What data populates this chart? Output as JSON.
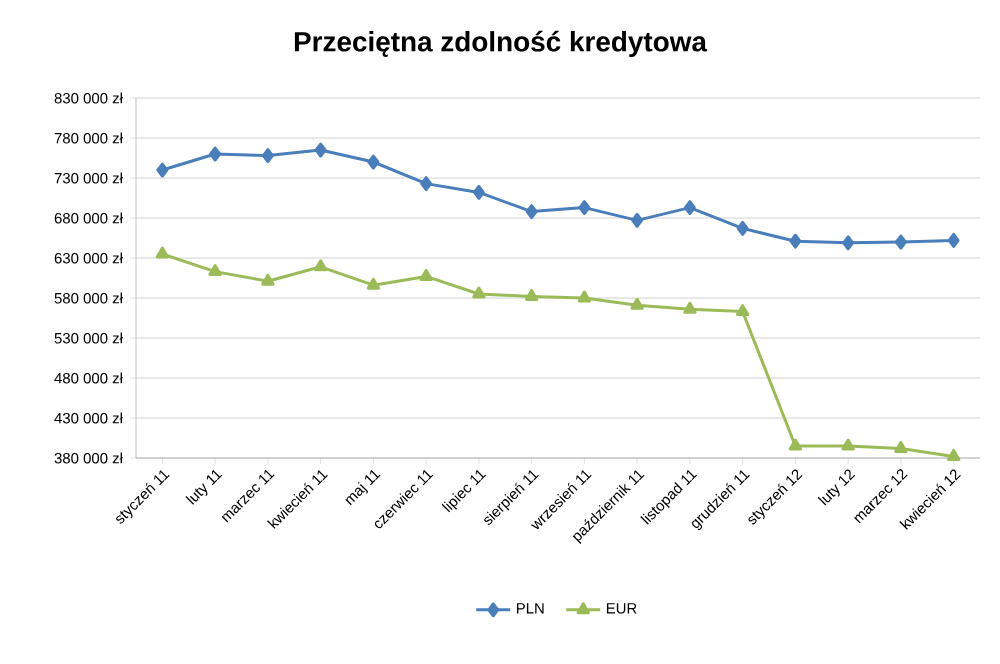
{
  "chart_data": {
    "type": "line",
    "title": "Przeciętna zdolność kredytowa",
    "categories": [
      "styczeń 11",
      "luty 11",
      "marzec 11",
      "kwiecień 11",
      "maj 11",
      "czerwiec 11",
      "lipiec 11",
      "sierpień 11",
      "wrzesień 11",
      "październik 11",
      "listopad 11",
      "grudzień 11",
      "styczeń 12",
      "luty 12",
      "marzec 12",
      "kwiecień 12"
    ],
    "series": [
      {
        "name": "PLN",
        "color": "#4a7ebb",
        "marker": "diamond",
        "values": [
          740000,
          760000,
          758000,
          765000,
          750000,
          723000,
          712000,
          688000,
          693000,
          677000,
          693000,
          667000,
          651000,
          649000,
          650000,
          652000
        ]
      },
      {
        "name": "EUR",
        "color": "#9bbb59",
        "marker": "triangle",
        "values": [
          635000,
          613000,
          601000,
          619000,
          596000,
          607000,
          585000,
          582000,
          580000,
          571000,
          566000,
          563000,
          395000,
          395000,
          392000,
          382000
        ]
      }
    ],
    "ylim": [
      380000,
      830000
    ],
    "yticks": [
      {
        "value": 380000,
        "label": "380 000 zł"
      },
      {
        "value": 430000,
        "label": "430 000 zł"
      },
      {
        "value": 480000,
        "label": "480 000 zł"
      },
      {
        "value": 530000,
        "label": "530 000 zł"
      },
      {
        "value": 580000,
        "label": "580 000 zł"
      },
      {
        "value": 630000,
        "label": "630 000 zł"
      },
      {
        "value": 680000,
        "label": "680 000 zł"
      },
      {
        "value": 730000,
        "label": "730 000 zł"
      },
      {
        "value": 780000,
        "label": "780 000 zł"
      },
      {
        "value": 830000,
        "label": "830 000 zł"
      }
    ],
    "grid": "y",
    "legend": "bottom",
    "line_style": "solid"
  }
}
